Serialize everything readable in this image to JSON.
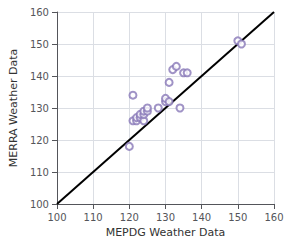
{
  "chart_data": {
    "type": "scatter",
    "xlabel": "MEPDG Weather Data",
    "ylabel": "MERRA Weather Data",
    "xlim": [
      100,
      160
    ],
    "ylim": [
      100,
      160
    ],
    "xticks": [
      100,
      110,
      120,
      130,
      140,
      150,
      160
    ],
    "yticks": [
      100,
      110,
      120,
      130,
      140,
      150,
      160
    ],
    "grid": true,
    "series": [
      {
        "type": "line",
        "color": "#000000",
        "line_style": "solid",
        "x": [
          100,
          160
        ],
        "values": [
          100,
          160
        ]
      },
      {
        "type": "scatter",
        "color": "#8878b8",
        "marker": "hollow_circle",
        "x": [
          120,
          121,
          122,
          122,
          123,
          123,
          124,
          124,
          124,
          125,
          125,
          121,
          128,
          130,
          130,
          131,
          131,
          132,
          133,
          134,
          135,
          136,
          150,
          151
        ],
        "values": [
          118,
          126,
          126,
          127,
          127,
          128,
          126,
          128,
          129,
          129,
          130,
          134,
          130,
          132,
          133,
          132,
          138,
          142,
          143,
          130,
          141,
          141,
          151,
          150
        ]
      }
    ]
  }
}
